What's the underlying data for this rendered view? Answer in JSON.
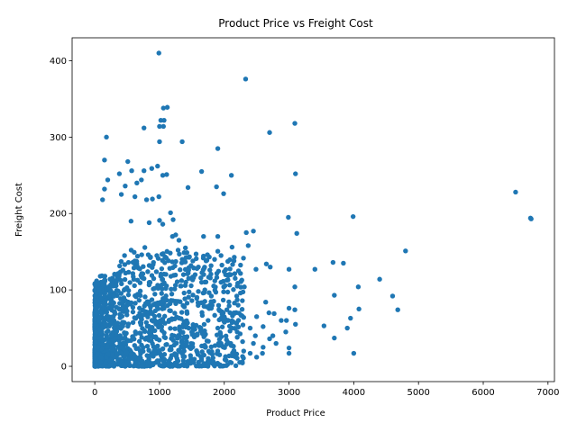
{
  "chart_data": {
    "type": "scatter",
    "title": "Product Price vs Freight Cost",
    "xlabel": "Product Price",
    "ylabel": "Freight Cost",
    "xlim": [
      -350,
      7100
    ],
    "ylim": [
      -20,
      430
    ],
    "xticks": [
      0,
      1000,
      2000,
      3000,
      4000,
      5000,
      6000,
      7000
    ],
    "yticks": [
      0,
      100,
      200,
      300,
      400
    ],
    "grid": false,
    "marker_color": "#1f77b4",
    "dense_cluster": {
      "x_range": [
        0,
        2300
      ],
      "y_range": [
        0,
        140
      ],
      "note_points": 1400
    },
    "points": [
      [
        990,
        410
      ],
      [
        2330,
        376
      ],
      [
        1120,
        339
      ],
      [
        1060,
        338
      ],
      [
        1020,
        322
      ],
      [
        1070,
        322
      ],
      [
        3090,
        318
      ],
      [
        1000,
        314
      ],
      [
        1060,
        314
      ],
      [
        2700,
        306
      ],
      [
        180,
        300
      ],
      [
        760,
        312
      ],
      [
        1000,
        294
      ],
      [
        1350,
        294
      ],
      [
        1900,
        285
      ],
      [
        510,
        268
      ],
      [
        150,
        270
      ],
      [
        570,
        256
      ],
      [
        760,
        256
      ],
      [
        880,
        259
      ],
      [
        970,
        262
      ],
      [
        1050,
        250
      ],
      [
        1110,
        251
      ],
      [
        3100,
        252
      ],
      [
        1650,
        255
      ],
      [
        2110,
        250
      ],
      [
        380,
        252
      ],
      [
        720,
        244
      ],
      [
        650,
        240
      ],
      [
        470,
        236
      ],
      [
        1440,
        234
      ],
      [
        1880,
        235
      ],
      [
        200,
        244
      ],
      [
        6500,
        228
      ],
      [
        1990,
        226
      ],
      [
        150,
        232
      ],
      [
        410,
        225
      ],
      [
        620,
        222
      ],
      [
        990,
        222
      ],
      [
        800,
        218
      ],
      [
        890,
        219
      ],
      [
        120,
        218
      ],
      [
        6730,
        194
      ],
      [
        6740,
        193
      ],
      [
        2990,
        195
      ],
      [
        3990,
        196
      ],
      [
        3120,
        174
      ],
      [
        2340,
        175
      ],
      [
        2450,
        177
      ],
      [
        1680,
        170
      ],
      [
        1900,
        170
      ],
      [
        2370,
        158
      ],
      [
        2120,
        156
      ],
      [
        4800,
        151
      ],
      [
        1000,
        191
      ],
      [
        1210,
        192
      ],
      [
        1050,
        186
      ],
      [
        1170,
        201
      ],
      [
        840,
        188
      ],
      [
        560,
        190
      ],
      [
        3680,
        136
      ],
      [
        3840,
        135
      ],
      [
        2650,
        134
      ],
      [
        2710,
        130
      ],
      [
        3400,
        127
      ],
      [
        3000,
        127
      ],
      [
        2490,
        127
      ],
      [
        4400,
        114
      ],
      [
        4070,
        104
      ],
      [
        3090,
        104
      ],
      [
        2310,
        104
      ],
      [
        3700,
        93
      ],
      [
        4600,
        92
      ],
      [
        2640,
        84
      ],
      [
        4080,
        75
      ],
      [
        3000,
        76
      ],
      [
        3090,
        74
      ],
      [
        4680,
        74
      ],
      [
        2770,
        69
      ],
      [
        2690,
        70
      ],
      [
        2960,
        60
      ],
      [
        3950,
        63
      ],
      [
        2880,
        60
      ],
      [
        3540,
        53
      ],
      [
        3900,
        50
      ],
      [
        3100,
        55
      ],
      [
        3700,
        37
      ],
      [
        2750,
        40
      ],
      [
        2950,
        45
      ],
      [
        3000,
        24
      ],
      [
        4000,
        17
      ],
      [
        3000,
        17
      ],
      [
        2450,
        30
      ],
      [
        2590,
        17
      ],
      [
        1200,
        0
      ],
      [
        680,
        0
      ],
      [
        730,
        0
      ],
      [
        2100,
        120
      ],
      [
        2200,
        105
      ],
      [
        2250,
        96
      ],
      [
        1870,
        97
      ],
      [
        1950,
        110
      ],
      [
        2000,
        124
      ],
      [
        2020,
        120
      ],
      [
        1700,
        100
      ],
      [
        1500,
        86
      ],
      [
        1800,
        76
      ],
      [
        2200,
        87
      ],
      [
        2300,
        64
      ],
      [
        2500,
        65
      ],
      [
        2600,
        52
      ],
      [
        2400,
        50
      ],
      [
        2200,
        45
      ],
      [
        2480,
        40
      ],
      [
        2700,
        36
      ],
      [
        2800,
        30
      ],
      [
        2600,
        25
      ],
      [
        2400,
        17
      ],
      [
        2500,
        12
      ],
      [
        2300,
        20
      ],
      [
        2200,
        38
      ],
      [
        2100,
        30
      ],
      [
        1900,
        50
      ],
      [
        1950,
        30
      ],
      [
        2050,
        60
      ],
      [
        2150,
        70
      ],
      [
        1850,
        140
      ],
      [
        1950,
        145
      ],
      [
        2150,
        138
      ],
      [
        2220,
        125
      ],
      [
        1740,
        146
      ],
      [
        1600,
        130
      ],
      [
        1400,
        155
      ],
      [
        1300,
        165
      ],
      [
        1250,
        172
      ],
      [
        1200,
        170
      ],
      [
        1350,
        140
      ],
      [
        1450,
        126
      ],
      [
        1550,
        120
      ],
      [
        1650,
        110
      ],
      [
        1600,
        98
      ],
      [
        1700,
        85
      ],
      [
        1800,
        92
      ],
      [
        1750,
        60
      ]
    ]
  }
}
